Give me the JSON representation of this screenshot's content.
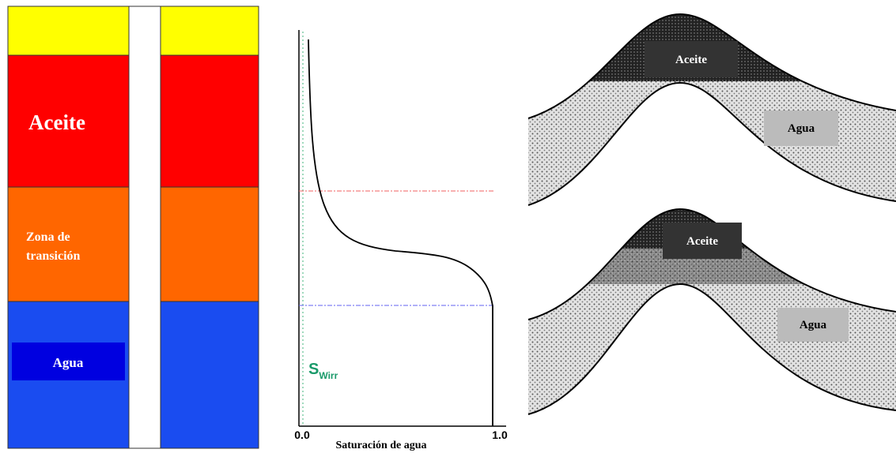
{
  "column": {
    "oil_label": "Aceite",
    "transition_label": [
      "Zona de",
      "transición"
    ],
    "water_label": "Agua"
  },
  "saturation_plot": {
    "x_axis_label": "Saturación de agua",
    "x_tick_start": "0.0",
    "x_tick_end": "1.0",
    "swirr_label": {
      "main": "S",
      "subscript": "Wirr"
    }
  },
  "traps": [
    {
      "oil_label": "Aceite",
      "water_label": "Agua"
    },
    {
      "oil_label": "Aceite",
      "water_label": "Agua"
    }
  ]
}
